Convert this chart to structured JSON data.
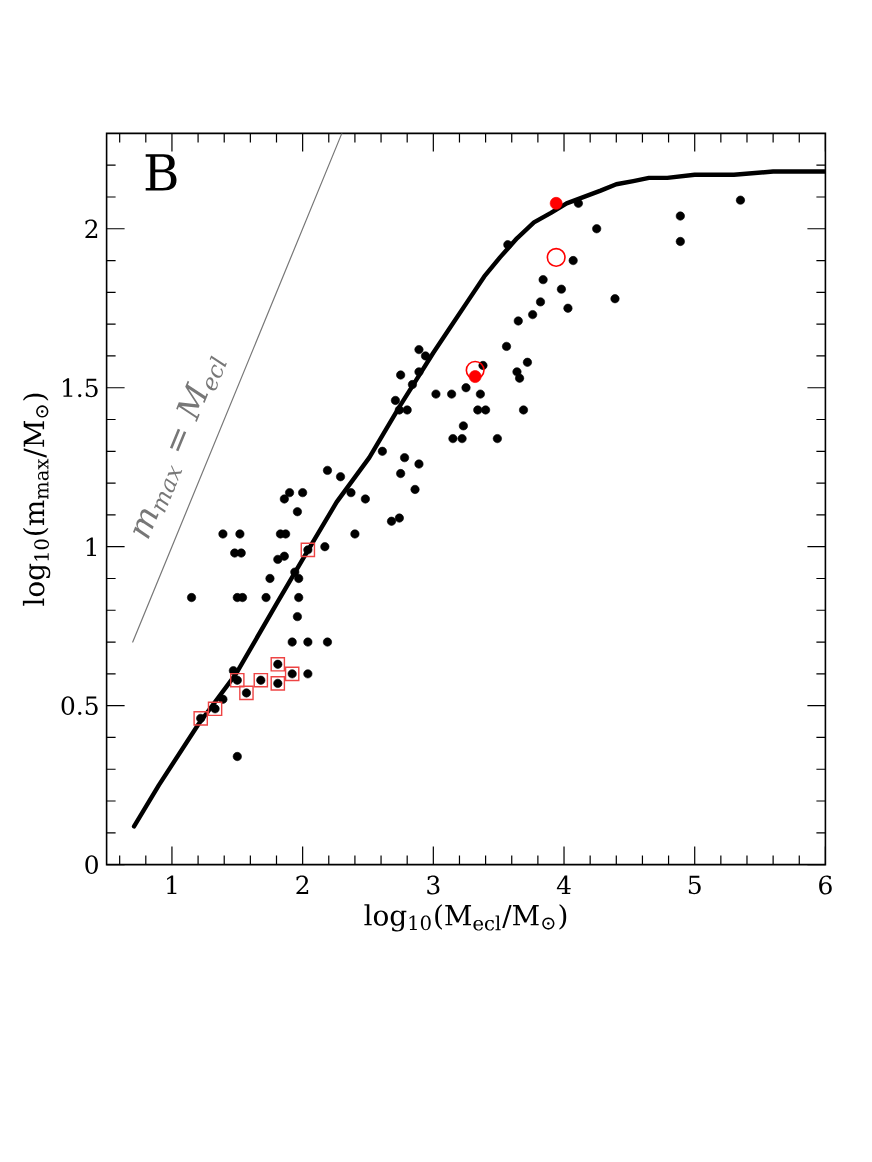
{
  "chart_data": {
    "type": "scatter",
    "xlabel": "log$_{10}$(M$_{ecl}$/M$_{⊙}$)",
    "ylabel": "log$_{10}$(m$_{max}$/M$_{⊙}$)",
    "annotations": [
      "B"
    ],
    "xlim": [
      0.5,
      6
    ],
    "ylim": [
      0,
      2.3
    ],
    "xticks": [
      {
        "value": 0.6,
        "label": null
      },
      {
        "value": 0.8,
        "label": null
      },
      1,
      {
        "value": 1.2,
        "label": null
      },
      {
        "value": 1.4,
        "label": null
      },
      {
        "value": 1.6,
        "label": null
      },
      {
        "value": 1.8,
        "label": null
      },
      2,
      {
        "value": 2.2,
        "label": null
      },
      {
        "value": 2.4,
        "label": null
      },
      {
        "value": 2.6,
        "label": null
      },
      {
        "value": 2.8,
        "label": null
      },
      3,
      {
        "value": 3.2,
        "label": null
      },
      {
        "value": 3.4,
        "label": null
      },
      {
        "value": 3.6,
        "label": null
      },
      {
        "value": 3.8,
        "label": null
      },
      4,
      {
        "value": 4.2,
        "label": null
      },
      {
        "value": 4.4,
        "label": null
      },
      {
        "value": 4.6,
        "label": null
      },
      {
        "value": 4.8,
        "label": null
      },
      5,
      {
        "value": 5.2,
        "label": null
      },
      {
        "value": 5.4,
        "label": null
      },
      {
        "value": 5.6,
        "label": null
      },
      {
        "value": 5.8,
        "label": null
      },
      6
    ],
    "yticks": [
      0,
      {
        "value": 0.1,
        "label": null
      },
      {
        "value": 0.2,
        "label": null
      },
      {
        "value": 0.3,
        "label": null
      },
      {
        "value": 0.4,
        "label": null
      },
      0.5,
      {
        "value": 0.6,
        "label": null
      },
      {
        "value": 0.7,
        "label": null
      },
      {
        "value": 0.8,
        "label": null
      },
      {
        "value": 0.9,
        "label": null
      },
      1,
      {
        "value": 1.1,
        "label": null
      },
      {
        "value": 1.2,
        "label": null
      },
      {
        "value": 1.3,
        "label": null
      },
      {
        "value": 1.4,
        "label": null
      },
      1.5,
      {
        "value": 1.6,
        "label": null
      },
      {
        "value": 1.7,
        "label": null
      },
      {
        "value": 1.8,
        "label": null
      },
      {
        "value": 1.9,
        "label": null
      },
      2,
      {
        "value": 2.1,
        "label": null
      },
      {
        "value": 2.2,
        "label": null
      }
    ],
    "series": [
      {
        "marker": "circle",
        "color": "#000000",
        "x": [
          1.15,
          1.39,
          1.52,
          1.48,
          1.53,
          1.5,
          1.54,
          1.47,
          1.5,
          1.39,
          1.33,
          1.22,
          1.5,
          1.57,
          1.68,
          1.81,
          1.81,
          1.92,
          2.04,
          1.92,
          2.04,
          2.19,
          1.96,
          1.97,
          1.72,
          1.75,
          1.94,
          1.97,
          1.81,
          1.86,
          1.83,
          1.87,
          2.04,
          2.17,
          1.9,
          2.0,
          1.86,
          1.96,
          2.19,
          2.29,
          2.37,
          2.48,
          2.4,
          2.68,
          2.74,
          2.75,
          2.86,
          2.89,
          2.61,
          2.71,
          2.74,
          2.8,
          2.89,
          2.94,
          2.89,
          2.84,
          2.75,
          3.02,
          3.14,
          3.25,
          3.36,
          3.34,
          3.4,
          3.23,
          3.15,
          3.22,
          3.49,
          2.78,
          3.56,
          3.64,
          3.66,
          3.72,
          3.69,
          3.65,
          3.76,
          3.82,
          3.84,
          3.98,
          4.03,
          4.07,
          4.11,
          3.57,
          4.25,
          4.39,
          4.89,
          4.89,
          5.35,
          3.38
        ],
        "values": [
          0.84,
          1.04,
          1.04,
          0.98,
          0.98,
          0.84,
          0.84,
          0.61,
          0.58,
          0.52,
          0.49,
          0.46,
          0.34,
          0.54,
          0.58,
          0.63,
          0.57,
          0.6,
          0.6,
          0.7,
          0.7,
          0.7,
          0.78,
          0.84,
          0.84,
          0.9,
          0.92,
          0.9,
          0.96,
          0.97,
          1.04,
          1.04,
          0.99,
          1.0,
          1.17,
          1.17,
          1.15,
          1.11,
          1.24,
          1.22,
          1.17,
          1.15,
          1.04,
          1.08,
          1.09,
          1.23,
          1.18,
          1.26,
          1.3,
          1.46,
          1.43,
          1.43,
          1.62,
          1.6,
          1.55,
          1.51,
          1.54,
          1.48,
          1.48,
          1.5,
          1.48,
          1.43,
          1.43,
          1.38,
          1.34,
          1.34,
          1.34,
          1.28,
          1.63,
          1.55,
          1.53,
          1.58,
          1.43,
          1.71,
          1.73,
          1.77,
          1.84,
          1.81,
          1.75,
          1.9,
          2.08,
          1.95,
          2.0,
          1.78,
          2.04,
          1.96,
          2.09,
          1.57
        ]
      },
      {
        "marker": "square",
        "color": "#ee4444",
        "x": [
          1.22,
          1.33,
          1.5,
          1.57,
          1.68,
          1.81,
          1.81,
          1.92,
          2.04
        ],
        "values": [
          0.46,
          0.49,
          0.58,
          0.54,
          0.58,
          0.63,
          0.57,
          0.6,
          0.99
        ]
      },
      {
        "marker": "circle",
        "color": "#ff0000",
        "x": [
          3.32,
          3.94
        ],
        "values": [
          1.535,
          2.08
        ]
      },
      {
        "marker": "circle",
        "color": "#ff0000",
        "x": [
          3.32,
          3.94
        ],
        "values": [
          1.555,
          1.91
        ]
      },
      {
        "type": "line",
        "color": "#000000",
        "x": [
          0.71,
          0.9,
          1.2,
          1.49,
          1.8,
          2.0,
          2.26,
          2.51,
          2.74,
          3.0,
          3.13,
          3.26,
          3.39,
          3.51,
          3.64,
          3.77,
          3.9,
          4.02,
          4.15,
          4.28,
          4.4,
          4.53,
          4.65,
          4.79,
          5.0,
          5.3,
          5.6,
          6.0
        ],
        "values": [
          0.12,
          0.25,
          0.44,
          0.6,
          0.82,
          0.96,
          1.14,
          1.28,
          1.44,
          1.61,
          1.69,
          1.77,
          1.85,
          1.91,
          1.97,
          2.02,
          2.05,
          2.08,
          2.1,
          2.12,
          2.14,
          2.15,
          2.16,
          2.16,
          2.17,
          2.17,
          2.18,
          2.18
        ]
      },
      {
        "type": "line",
        "color": "#777777",
        "name": "m$_{max}$ = M$_{ecl}$",
        "x": [
          0.7,
          2.3
        ],
        "values": [
          0.7,
          2.3
        ]
      }
    ]
  }
}
